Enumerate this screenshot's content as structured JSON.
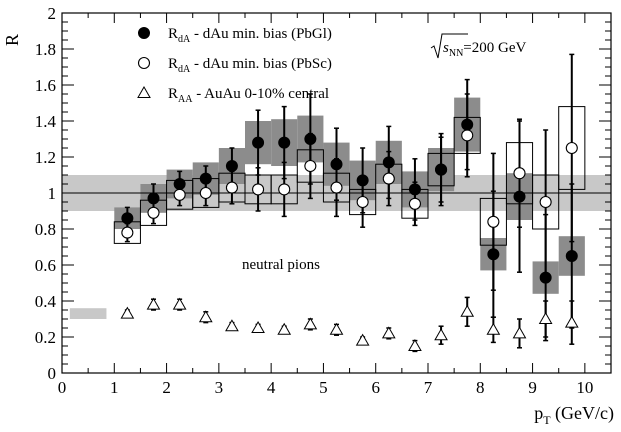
{
  "chart_data": {
    "type": "scatter",
    "title": "",
    "xlabel": "p_T (GeV/c)",
    "ylabel": "R",
    "xlim": [
      0,
      10.5
    ],
    "ylim": [
      0,
      2
    ],
    "grid": false,
    "legend_position": "top-left",
    "x_ticks": [
      "0",
      "1",
      "2",
      "3",
      "4",
      "5",
      "6",
      "7",
      "8",
      "9",
      "10"
    ],
    "y_ticks": [
      "0",
      "0.2",
      "0.4",
      "0.6",
      "0.8",
      "1",
      "1.2",
      "1.4",
      "1.6",
      "1.8",
      "2"
    ],
    "reference_line": 1,
    "reference_band": [
      0.9,
      1.1
    ],
    "aa_norm_band": [
      0.3,
      0.36
    ],
    "series": [
      {
        "name": "R_dA - dAu min. bias (PbGl)",
        "marker": "filled-circle",
        "points": [
          {
            "x": 1.25,
            "y": 0.86,
            "err": 0.06,
            "sys": 0.06
          },
          {
            "x": 1.75,
            "y": 0.97,
            "err": 0.08,
            "sys": 0.08
          },
          {
            "x": 2.25,
            "y": 1.05,
            "err": 0.07,
            "sys": 0.08
          },
          {
            "x": 2.75,
            "y": 1.08,
            "err": 0.07,
            "sys": 0.09
          },
          {
            "x": 3.25,
            "y": 1.15,
            "err": 0.1,
            "sys": 0.1
          },
          {
            "x": 3.75,
            "y": 1.28,
            "err": 0.18,
            "sys": 0.12
          },
          {
            "x": 4.25,
            "y": 1.28,
            "err": 0.2,
            "sys": 0.13
          },
          {
            "x": 4.75,
            "y": 1.3,
            "err": 0.25,
            "sys": 0.13
          },
          {
            "x": 5.25,
            "y": 1.16,
            "err": 0.2,
            "sys": 0.12
          },
          {
            "x": 5.75,
            "y": 1.07,
            "err": 0.18,
            "sys": 0.11
          },
          {
            "x": 6.25,
            "y": 1.17,
            "err": 0.2,
            "sys": 0.12
          },
          {
            "x": 6.75,
            "y": 1.02,
            "err": 0.17,
            "sys": 0.1
          },
          {
            "x": 7.25,
            "y": 1.13,
            "err": 0.2,
            "sys": 0.12
          },
          {
            "x": 7.75,
            "y": 1.38,
            "err": 0.25,
            "sys": 0.15
          },
          {
            "x": 8.25,
            "y": 0.66,
            "err": 0.35,
            "sys": 0.09
          },
          {
            "x": 8.75,
            "y": 0.98,
            "err": 0.42,
            "sys": 0.13
          },
          {
            "x": 9.25,
            "y": 0.53,
            "err": 0.35,
            "sys": 0.09
          },
          {
            "x": 9.75,
            "y": 0.65,
            "err": 0.4,
            "sys": 0.11
          }
        ]
      },
      {
        "name": "R_dA - dAu min. bias (PbSc)",
        "marker": "open-circle",
        "points": [
          {
            "x": 1.25,
            "y": 0.78,
            "err": 0.05,
            "sys": 0.06
          },
          {
            "x": 1.75,
            "y": 0.89,
            "err": 0.06,
            "sys": 0.07
          },
          {
            "x": 2.25,
            "y": 0.99,
            "err": 0.06,
            "sys": 0.08
          },
          {
            "x": 2.75,
            "y": 1.0,
            "err": 0.07,
            "sys": 0.08
          },
          {
            "x": 3.25,
            "y": 1.03,
            "err": 0.09,
            "sys": 0.08
          },
          {
            "x": 3.75,
            "y": 1.02,
            "err": 0.12,
            "sys": 0.08
          },
          {
            "x": 4.25,
            "y": 1.02,
            "err": 0.15,
            "sys": 0.08
          },
          {
            "x": 4.75,
            "y": 1.15,
            "err": 0.18,
            "sys": 0.09
          },
          {
            "x": 5.25,
            "y": 1.03,
            "err": 0.16,
            "sys": 0.08
          },
          {
            "x": 5.75,
            "y": 0.95,
            "err": 0.14,
            "sys": 0.07
          },
          {
            "x": 6.25,
            "y": 1.08,
            "err": 0.15,
            "sys": 0.08
          },
          {
            "x": 6.75,
            "y": 0.94,
            "err": 0.12,
            "sys": 0.08
          },
          {
            "x": 7.25,
            "y": 1.13,
            "err": 0.18,
            "sys": 0.09
          },
          {
            "x": 7.75,
            "y": 1.32,
            "err": 0.23,
            "sys": 0.1
          },
          {
            "x": 8.25,
            "y": 0.84,
            "err": 0.38,
            "sys": 0.13
          },
          {
            "x": 8.75,
            "y": 1.11,
            "err": 0.3,
            "sys": 0.17
          },
          {
            "x": 9.25,
            "y": 0.95,
            "err": 0.4,
            "sys": 0.15
          },
          {
            "x": 9.75,
            "y": 1.25,
            "err": 0.52,
            "sys": 0.23
          }
        ]
      },
      {
        "name": "R_AA - AuAu 0-10% central",
        "marker": "open-triangle",
        "points": [
          {
            "x": 1.25,
            "y": 0.33,
            "err": 0.02
          },
          {
            "x": 1.75,
            "y": 0.38,
            "err": 0.03
          },
          {
            "x": 2.25,
            "y": 0.38,
            "err": 0.03
          },
          {
            "x": 2.75,
            "y": 0.31,
            "err": 0.03
          },
          {
            "x": 3.25,
            "y": 0.26,
            "err": 0.02
          },
          {
            "x": 3.75,
            "y": 0.25,
            "err": 0.02
          },
          {
            "x": 4.25,
            "y": 0.24,
            "err": 0.02
          },
          {
            "x": 4.75,
            "y": 0.27,
            "err": 0.03
          },
          {
            "x": 5.25,
            "y": 0.24,
            "err": 0.03
          },
          {
            "x": 5.75,
            "y": 0.18,
            "err": 0.02
          },
          {
            "x": 6.25,
            "y": 0.22,
            "err": 0.03
          },
          {
            "x": 6.75,
            "y": 0.15,
            "err": 0.03
          },
          {
            "x": 7.25,
            "y": 0.21,
            "err": 0.05
          },
          {
            "x": 7.75,
            "y": 0.34,
            "err": 0.08
          },
          {
            "x": 8.25,
            "y": 0.24,
            "err": 0.07
          },
          {
            "x": 8.75,
            "y": 0.22,
            "err": 0.08
          },
          {
            "x": 9.25,
            "y": 0.3,
            "err": 0.1
          },
          {
            "x": 9.75,
            "y": 0.28,
            "err": 0.12
          }
        ]
      }
    ],
    "legend": [
      {
        "main": "R",
        "sub": "dA",
        "rest": " - dAu min. bias (PbGl)",
        "marker": "filled-circle"
      },
      {
        "main": "R",
        "sub": "dA",
        "rest": " - dAu min. bias (PbSc)",
        "marker": "open-circle"
      },
      {
        "main": "R",
        "sub": "AA",
        "rest": " - AuAu 0-10% central",
        "marker": "open-triangle"
      }
    ],
    "annotations": {
      "energy_sub": "NN",
      "energy_rest": "=200 GeV",
      "particle": "neutral pions"
    },
    "axis_titles": {
      "y": "R",
      "x_main": "p",
      "x_sub": "T",
      "x_rest": " (GeV/c)"
    }
  }
}
